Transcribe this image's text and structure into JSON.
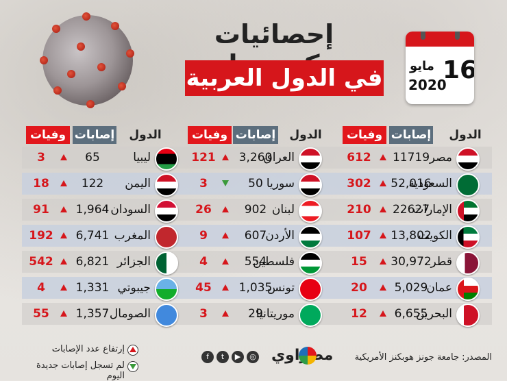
{
  "title": {
    "line1": "إحصائيات كـورونا",
    "line2": "في الدول العربية"
  },
  "date": {
    "day": "16",
    "month": "مايو",
    "year": "2020"
  },
  "headers": {
    "country": "الدول",
    "cases": "إصابات",
    "deaths": "وفيات"
  },
  "colors": {
    "accent": "#d6161b",
    "cases_header": "#5c6e7d",
    "down_arrow": "#3a9a3a"
  },
  "columns": [
    {
      "rows": [
        {
          "country": "مصر",
          "cases": "11719",
          "deaths": "612",
          "trend": "up",
          "flag": "egypt-flag-icon"
        },
        {
          "country": "السعودية",
          "cases": "52,016",
          "deaths": "302",
          "trend": "up",
          "flag": "saudi-flag-icon"
        },
        {
          "country": "الإمارات",
          "cases": "22627",
          "deaths": "210",
          "trend": "up",
          "flag": "uae-flag-icon"
        },
        {
          "country": "الكويت",
          "cases": "13,802",
          "deaths": "107",
          "trend": "up",
          "flag": "kuwait-flag-icon"
        },
        {
          "country": "قطر",
          "cases": "30,972",
          "deaths": "15",
          "trend": "up",
          "flag": "qatar-flag-icon"
        },
        {
          "country": "عمان",
          "cases": "5,029",
          "deaths": "20",
          "trend": "up",
          "flag": "oman-flag-icon"
        },
        {
          "country": "البحرين",
          "cases": "6,655",
          "deaths": "12",
          "trend": "up",
          "flag": "bahrain-flag-icon"
        }
      ]
    },
    {
      "rows": [
        {
          "country": "العراق",
          "cases": "3,260",
          "deaths": "121",
          "trend": "up",
          "flag": "iraq-flag-icon"
        },
        {
          "country": "سوريا",
          "cases": "50",
          "deaths": "3",
          "trend": "down",
          "flag": "syria-flag-icon"
        },
        {
          "country": "لبنان",
          "cases": "902",
          "deaths": "26",
          "trend": "up",
          "flag": "lebanon-flag-icon"
        },
        {
          "country": "الأردن",
          "cases": "607",
          "deaths": "9",
          "trend": "up",
          "flag": "jordan-flag-icon"
        },
        {
          "country": "فلسطين",
          "cases": "554",
          "deaths": "4",
          "trend": "up",
          "flag": "palestine-flag-icon"
        },
        {
          "country": "تونس",
          "cases": "1,035",
          "deaths": "45",
          "trend": "up",
          "flag": "tunisia-flag-icon"
        },
        {
          "country": "موريتانيا",
          "cases": "29",
          "deaths": "3",
          "trend": "up",
          "flag": "mauritania-flag-icon"
        }
      ]
    },
    {
      "rows": [
        {
          "country": "ليبيا",
          "cases": "65",
          "deaths": "3",
          "trend": "up",
          "flag": "libya-flag-icon"
        },
        {
          "country": "اليمن",
          "cases": "122",
          "deaths": "18",
          "trend": "up",
          "flag": "yemen-flag-icon"
        },
        {
          "country": "السودان",
          "cases": "1,964",
          "deaths": "91",
          "trend": "up",
          "flag": "sudan-flag-icon"
        },
        {
          "country": "المغرب",
          "cases": "6,741",
          "deaths": "192",
          "trend": "up",
          "flag": "morocco-flag-icon"
        },
        {
          "country": "الجزائر",
          "cases": "6,821",
          "deaths": "542",
          "trend": "up",
          "flag": "algeria-flag-icon"
        },
        {
          "country": "جيبوتي",
          "cases": "1,331",
          "deaths": "4",
          "trend": "up",
          "flag": "djibouti-flag-icon"
        },
        {
          "country": "الصومال",
          "cases": "1,357",
          "deaths": "55",
          "trend": "up",
          "flag": "somalia-flag-icon"
        }
      ]
    }
  ],
  "legend": {
    "up": "إرتفاع عدد الإصابات",
    "down": "لم تسجل إصابات جديدة اليوم"
  },
  "source": "المصدر: جامعة جونز هوبكنز الأمريكية",
  "brand": "مصراوي"
}
